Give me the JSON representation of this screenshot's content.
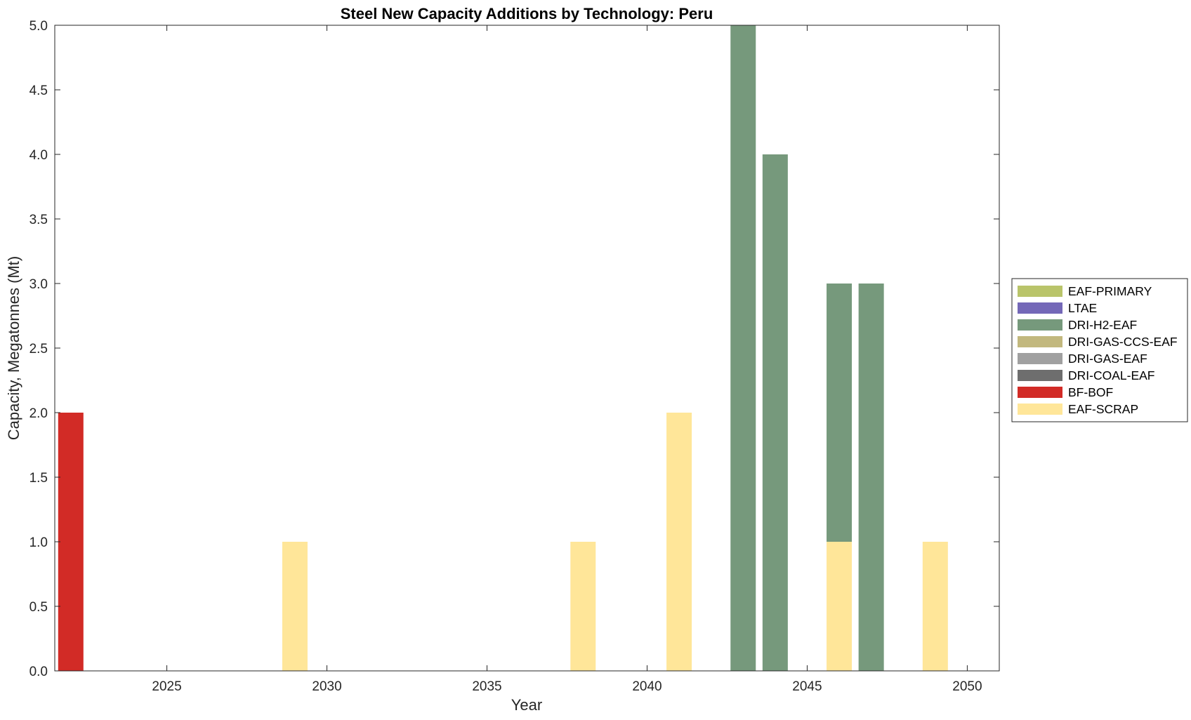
{
  "chart_data": {
    "type": "bar",
    "stacked": true,
    "title": "Steel New Capacity Additions by Technology: Peru",
    "xlabel": "Year",
    "ylabel": "Capacity, Megatonnes (Mt)",
    "xlim": [
      2021.5,
      2051
    ],
    "ylim": [
      0,
      5
    ],
    "xticks": [
      2025,
      2030,
      2035,
      2040,
      2045,
      2050
    ],
    "xtick_labels": [
      "2025",
      "2030",
      "2035",
      "2040",
      "2045",
      "2050"
    ],
    "yticks": [
      0,
      0.5,
      1,
      1.5,
      2,
      2.5,
      3,
      3.5,
      4,
      4.5,
      5
    ],
    "ytick_labels": [
      "0.0",
      "0.5",
      "1.0",
      "1.5",
      "2.0",
      "2.5",
      "3.0",
      "3.5",
      "4.0",
      "4.5",
      "5.0"
    ],
    "grid": false,
    "legend_position": "right",
    "x": [
      2022,
      2029,
      2038,
      2041,
      2043,
      2044,
      2046,
      2047,
      2049
    ],
    "series": [
      {
        "name": "EAF-SCRAP",
        "color": "#FFE699",
        "values": [
          0,
          1,
          1,
          2,
          0,
          0,
          1,
          0,
          1
        ]
      },
      {
        "name": "BF-BOF",
        "color": "#D22B26",
        "values": [
          2,
          0,
          0,
          0,
          0,
          0,
          0,
          0,
          0
        ]
      },
      {
        "name": "DRI-COAL-EAF",
        "color": "#6E6E6E",
        "values": [
          0,
          0,
          0,
          0,
          0,
          0,
          0,
          0,
          0
        ]
      },
      {
        "name": "DRI-GAS-EAF",
        "color": "#A0A0A0",
        "values": [
          0,
          0,
          0,
          0,
          0,
          0,
          0,
          0,
          0
        ]
      },
      {
        "name": "DRI-GAS-CCS-EAF",
        "color": "#C2B87E",
        "values": [
          0,
          0,
          0,
          0,
          0,
          0,
          0,
          0,
          0
        ]
      },
      {
        "name": "DRI-H2-EAF",
        "color": "#76997C",
        "values": [
          0,
          0,
          0,
          0,
          5,
          4,
          2,
          3,
          0
        ]
      },
      {
        "name": "LTAE",
        "color": "#7468B8",
        "values": [
          0,
          0,
          0,
          0,
          0,
          0,
          0,
          0,
          0
        ]
      },
      {
        "name": "EAF-PRIMARY",
        "color": "#B9C46A",
        "values": [
          0,
          0,
          0,
          0,
          0,
          0,
          0,
          0,
          0
        ]
      }
    ],
    "legend_order": [
      "EAF-PRIMARY",
      "LTAE",
      "DRI-H2-EAF",
      "DRI-GAS-CCS-EAF",
      "DRI-GAS-EAF",
      "DRI-COAL-EAF",
      "BF-BOF",
      "EAF-SCRAP"
    ]
  }
}
